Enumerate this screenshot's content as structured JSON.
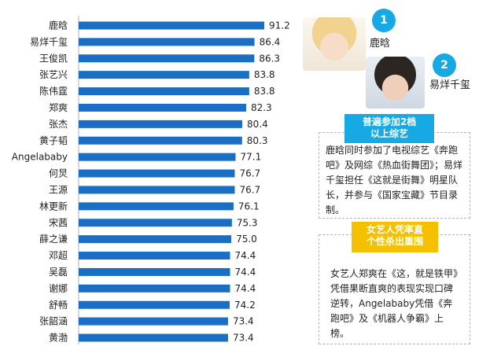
{
  "chart_data": {
    "type": "bar",
    "orientation": "horizontal",
    "categories": [
      "鹿晗",
      "易烊千玺",
      "王俊凯",
      "张艺兴",
      "陈伟霆",
      "郑爽",
      "张杰",
      "黄子韬",
      "Angelababy",
      "何炅",
      "王源",
      "林更新",
      "宋茜",
      "薛之谦",
      "邓超",
      "吴磊",
      "谢娜",
      "舒畅",
      "张韶涵",
      "黄渤"
    ],
    "values": [
      91.2,
      86.4,
      86.3,
      83.8,
      83.8,
      82.3,
      80.4,
      80.3,
      77.1,
      76.7,
      76.7,
      76.1,
      75.3,
      75.0,
      74.4,
      74.4,
      74.4,
      74.2,
      73.4,
      73.4
    ],
    "value_labels": [
      "91.2",
      "86.4",
      "86.3",
      "83.8",
      "83.8",
      "82.3",
      "80.4",
      "80.3",
      "77.1",
      "76.7",
      "76.7",
      "76.1",
      "75.3",
      "75.0",
      "74.4",
      "74.4",
      "74.4",
      "74.2",
      "73.4",
      "73.4"
    ],
    "bar_color": "#1a6fc4",
    "xlim": [
      0,
      91.2
    ],
    "grid": false,
    "legend": "none"
  },
  "sidebar": {
    "rank1": {
      "number": "1",
      "name": "鹿晗"
    },
    "rank2": {
      "number": "2",
      "name": "易烊千玺"
    },
    "tag1": {
      "line1": "普遍参加2档",
      "line2": "以上综艺",
      "color": "#16a9e3"
    },
    "note1": "鹿晗同时参加了电视综艺《奔跑吧》及网综《热血街舞团》；易烊千玺担任《这就是街舞》明星队长，并参与《国家宝藏》节目录制。",
    "tag2": {
      "line1": "女艺人凭率直",
      "line2": "个性杀出重围",
      "color": "#f5c000"
    },
    "note2": "女艺人郑爽在《这，就是铁甲》凭借果断直爽的表现实现口碑逆转，Angelababy凭借《奔跑吧》及《机器人争霸》上榜。"
  }
}
